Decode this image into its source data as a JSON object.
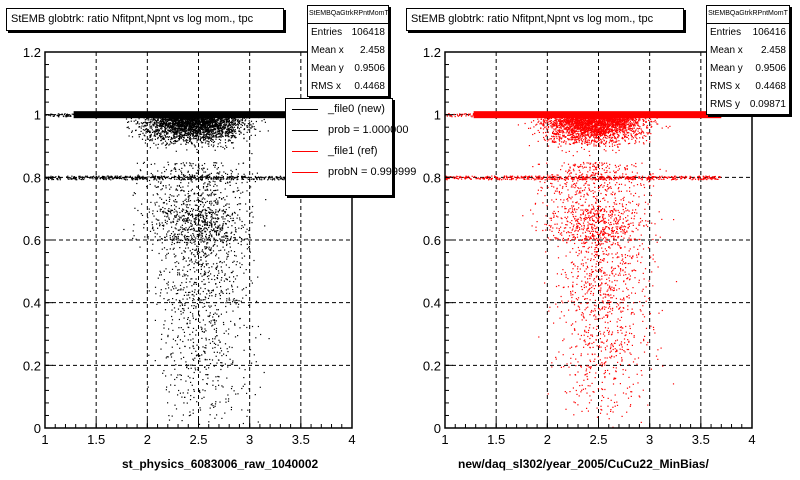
{
  "panels": [
    {
      "title": "StEMB globtrk: ratio Nfitpnt,Npnt vs log mom., tpc",
      "stats": {
        "name": "StEMBQaGtrkRPntMomT",
        "rows": [
          {
            "label": "Entries",
            "value": "106418"
          },
          {
            "label": "Mean x",
            "value": "2.458"
          },
          {
            "label": "Mean y",
            "value": "0.9506"
          },
          {
            "label": "RMS x",
            "value": "0.4468"
          }
        ]
      },
      "legend": [
        {
          "label": "_file0 (new)",
          "color": "#000000"
        },
        {
          "label": "prob = 1.000000",
          "color": "#000000"
        },
        {
          "label": "_file1 (ref)",
          "color": "#ff0000"
        },
        {
          "label": "probN = 0.999999",
          "color": "#ff0000"
        }
      ],
      "xtitle": "st_physics_6083006_raw_1040002"
    },
    {
      "title": "StEMB globtrk: ratio Nfitpnt,Npnt vs log mom., tpc",
      "stats": {
        "name": "StEMBQaGtrkRPntMomT",
        "rows": [
          {
            "label": "Entries",
            "value": "106416"
          },
          {
            "label": "Mean x",
            "value": "2.458"
          },
          {
            "label": "Mean y",
            "value": "0.9506"
          },
          {
            "label": "RMS x",
            "value": "0.4468"
          },
          {
            "label": "RMS y",
            "value": "0.09871"
          }
        ]
      },
      "xtitle": "new/daq_sl302/year_2005/CuCu22_MinBias/"
    }
  ],
  "chart_data": [
    {
      "type": "scatter",
      "title": "StEMB globtrk: ratio Nfitpnt,Npnt vs log mom., tpc",
      "xlabel": "st_physics_6083006_raw_1040002",
      "ylabel": "",
      "xlim": [
        1,
        4
      ],
      "ylim": [
        0,
        1.2
      ],
      "xticks": [
        "1",
        "1.5",
        "2",
        "2.5",
        "3",
        "3.5",
        "4"
      ],
      "yticks": [
        "0",
        "0.2",
        "0.4",
        "0.6",
        "0.8",
        "1",
        "1.2"
      ],
      "grid": true,
      "color": "#000000",
      "series": [
        {
          "name": "_file0 (new)",
          "description": "dense band at y=1.0 for x 1.3-3.7, dense region 0.85-1.0, secondary band at 0.8, sparse points down to 0",
          "bands": [
            {
              "y": 1.0,
              "x": [
                1.2,
                3.7
              ]
            },
            {
              "y": 0.8,
              "x": [
                1.0,
                3.7
              ]
            }
          ],
          "entries": 106418,
          "mean_x": 2.458,
          "mean_y": 0.9506,
          "rms_x": 0.4468
        }
      ]
    },
    {
      "type": "scatter",
      "title": "StEMB globtrk: ratio Nfitpnt,Npnt vs log mom., tpc",
      "xlabel": "new/daq_sl302/year_2005/CuCu22_MinBias/",
      "ylabel": "",
      "xlim": [
        1,
        4
      ],
      "ylim": [
        0,
        1.2
      ],
      "xticks": [
        "1",
        "1.5",
        "2",
        "2.5",
        "3",
        "3.5",
        "4"
      ],
      "yticks": [
        "0",
        "0.2",
        "0.4",
        "0.6",
        "0.8",
        "1",
        "1.2"
      ],
      "grid": true,
      "color": "#ff0000",
      "series": [
        {
          "name": "_file1 (ref)",
          "bands": [
            {
              "y": 1.0,
              "x": [
                1.2,
                3.7
              ]
            },
            {
              "y": 0.8,
              "x": [
                1.0,
                3.7
              ]
            }
          ],
          "entries": 106416,
          "mean_x": 2.458,
          "mean_y": 0.9506,
          "rms_x": 0.4468,
          "rms_y": 0.09871
        }
      ]
    }
  ]
}
